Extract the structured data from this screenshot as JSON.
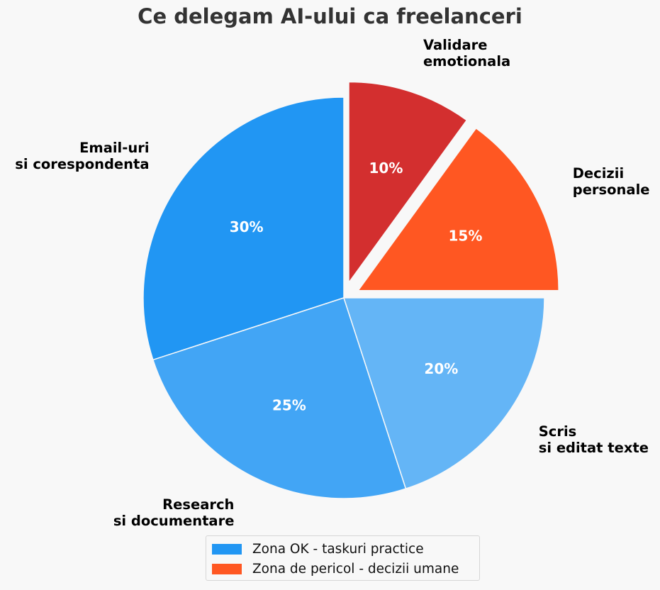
{
  "chart_data": {
    "type": "pie",
    "title": "Ce delegam AI-ului ca freelanceri",
    "slices": [
      {
        "label": "Email-uri\nsi corespondenta",
        "value": 30,
        "pct_label": "30%",
        "color": "#2196F3",
        "group": "ok"
      },
      {
        "label": "Research\nsi documentare",
        "value": 25,
        "pct_label": "25%",
        "color": "#42A5F5",
        "group": "ok"
      },
      {
        "label": "Scris\nsi editat texte",
        "value": 20,
        "pct_label": "20%",
        "color": "#64B5F6",
        "group": "ok"
      },
      {
        "label": "Decizii\npersonale",
        "value": 15,
        "pct_label": "15%",
        "color": "#FF5722",
        "group": "danger",
        "exploded": true
      },
      {
        "label": "Validare\nemotionala",
        "value": 10,
        "pct_label": "10%",
        "color": "#D32F2F",
        "group": "danger",
        "exploded": true
      }
    ],
    "start_angle": 90,
    "direction": "counterclockwise",
    "legend": {
      "placement": "bottom-center",
      "entries": [
        {
          "label": "Zona OK - taskuri practice",
          "color": "#2196F3"
        },
        {
          "label": "Zona de pericol - decizii umane",
          "color": "#FF5722"
        }
      ]
    }
  }
}
